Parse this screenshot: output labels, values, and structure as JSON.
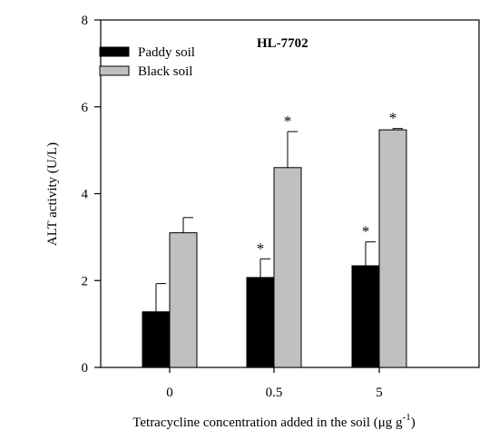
{
  "chart_data": {
    "type": "bar",
    "title": "HL-7702",
    "xlabel": "Tetracycline concentration added in the soil  (μg g",
    "xlabel_sup": "-1",
    "xlabel_close": ")",
    "ylabel": "ALT activity  (U/L)",
    "categories": [
      "0",
      "0.5",
      "5"
    ],
    "ylim": [
      0,
      8
    ],
    "yticks": [
      "0",
      "2",
      "4",
      "6",
      "8"
    ],
    "series": [
      {
        "name": "Paddy soil",
        "color": "#000000",
        "values": [
          1.28,
          2.07,
          2.34
        ],
        "errors": [
          0.65,
          0.43,
          0.55
        ],
        "significance": [
          "",
          "*",
          "*"
        ]
      },
      {
        "name": "Black soil",
        "color": "#c0c0c0",
        "values": [
          3.1,
          4.6,
          5.47
        ],
        "errors": [
          0.35,
          0.83,
          0.03
        ],
        "significance": [
          "",
          "*",
          "*"
        ]
      }
    ],
    "legend_position": "top-left",
    "grid": false
  }
}
